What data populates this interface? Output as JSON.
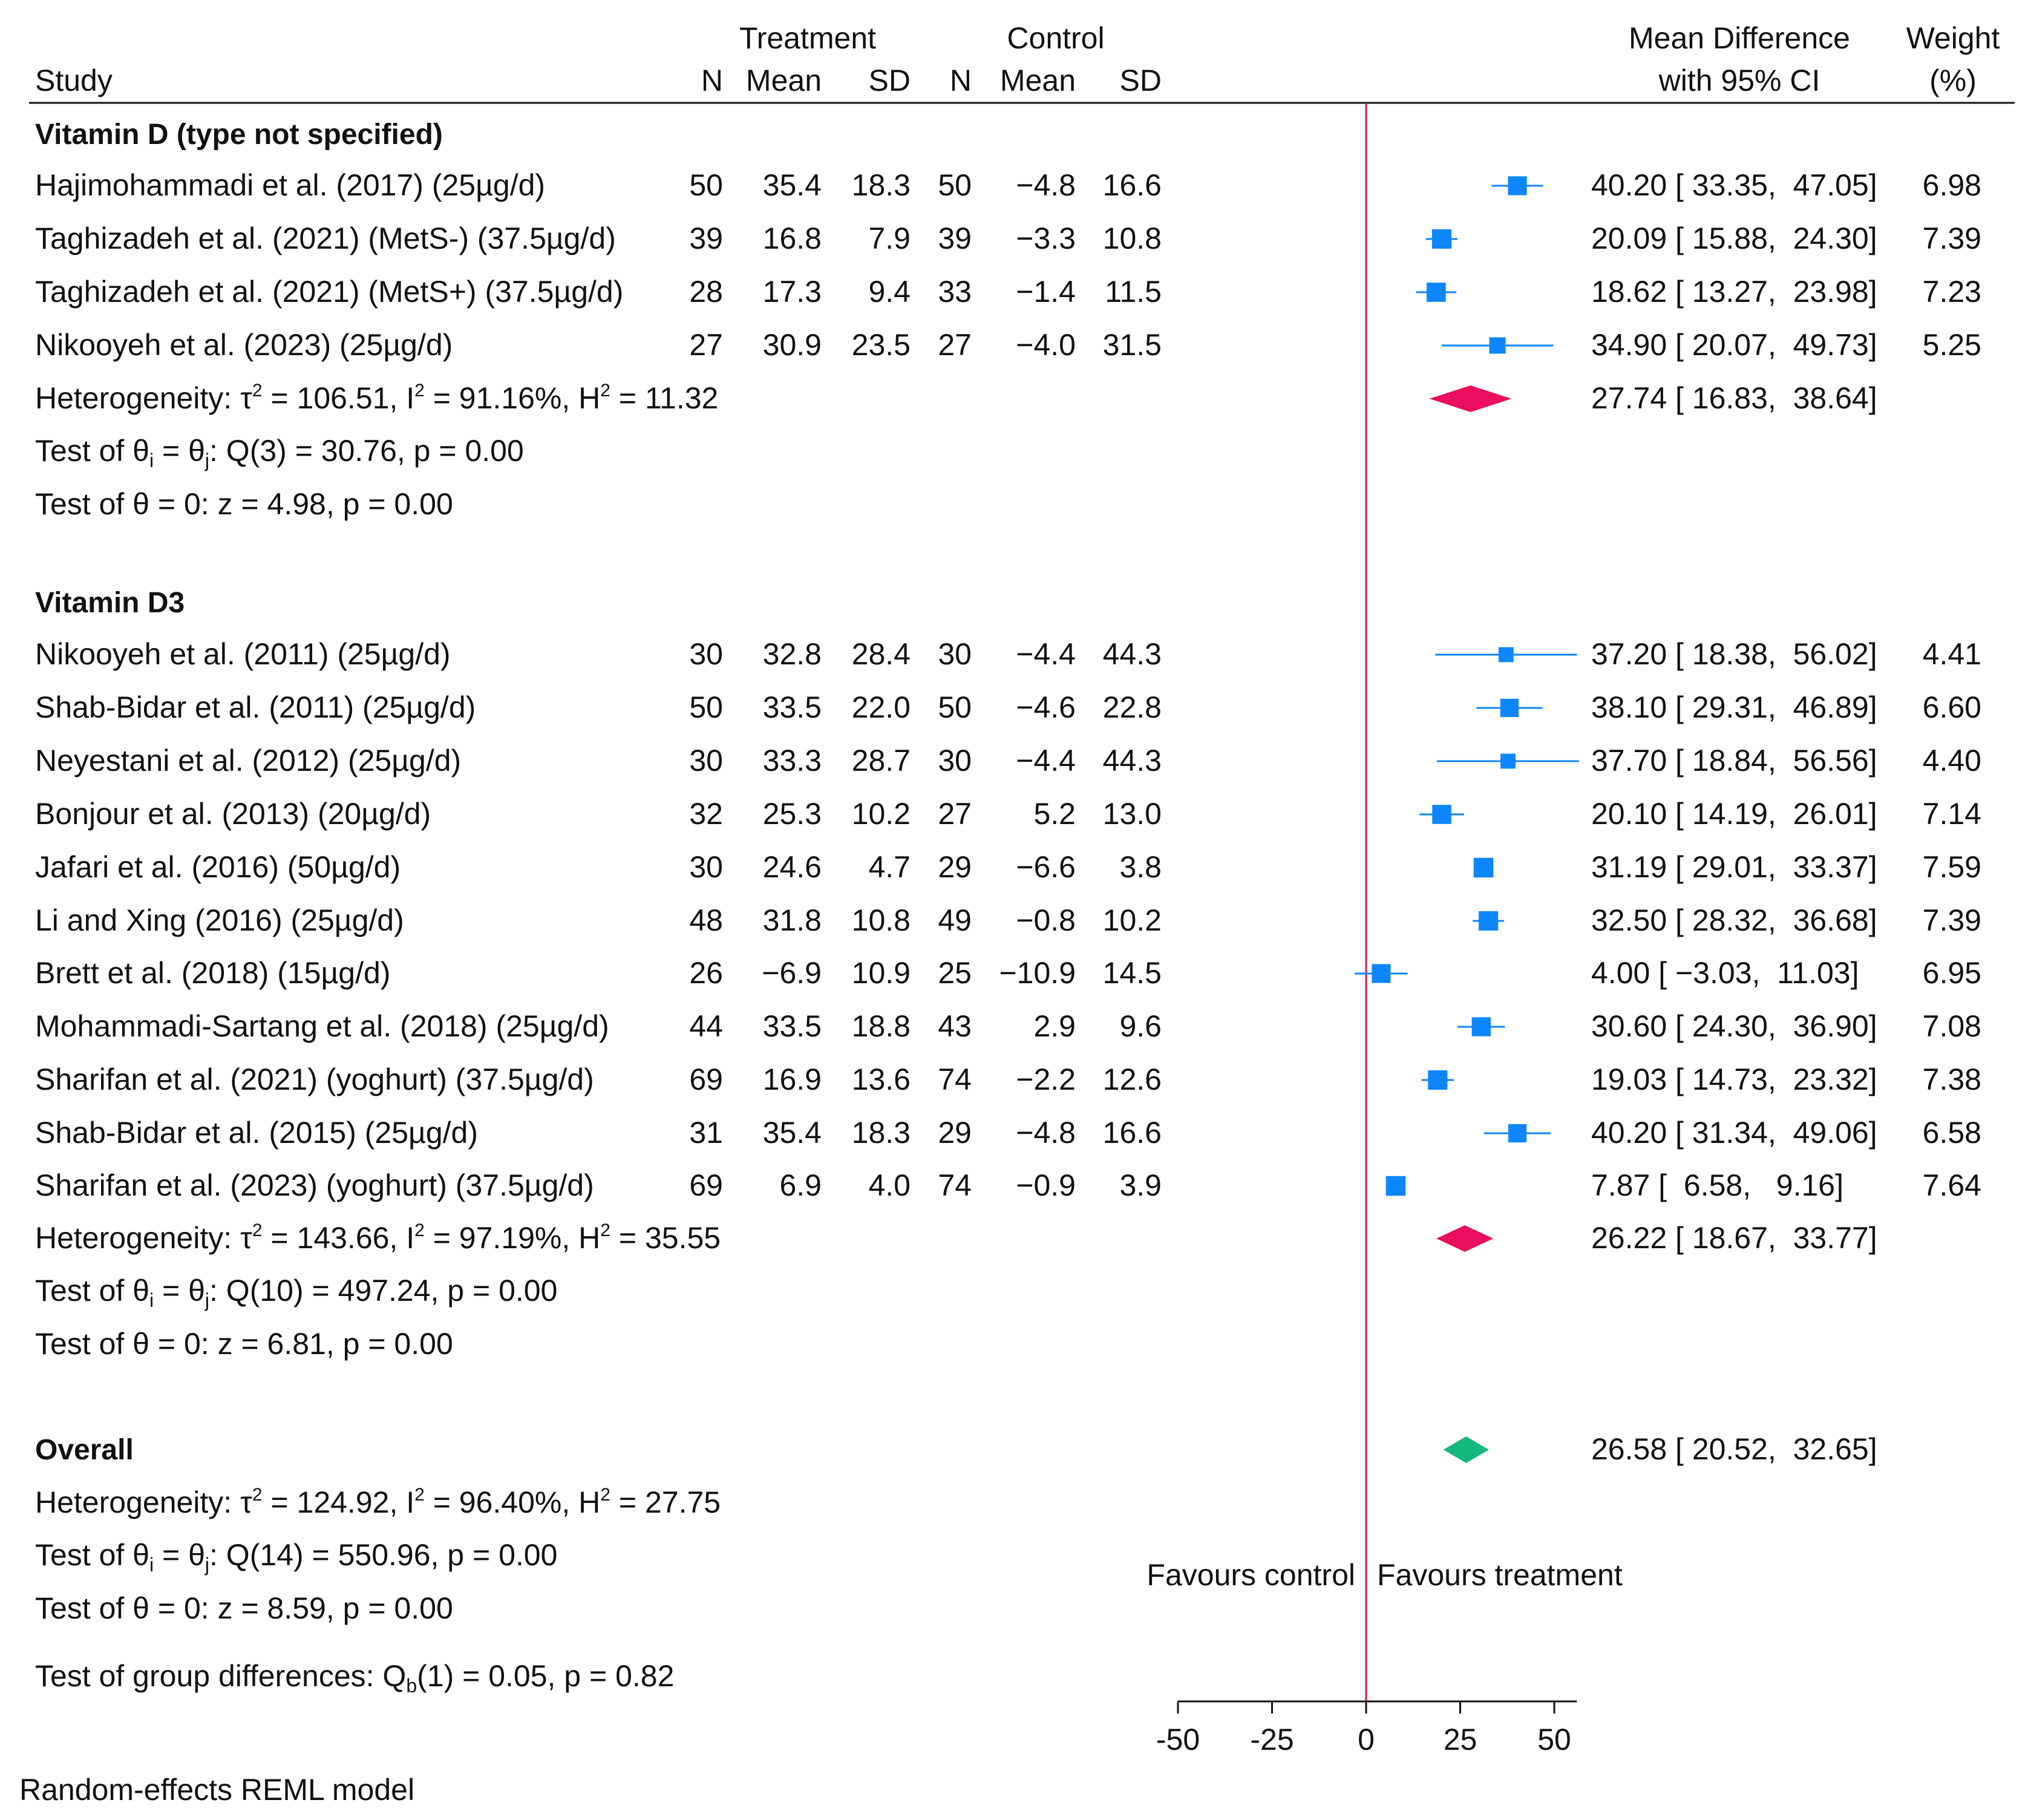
{
  "chart_data": {
    "type": "forest",
    "header": {
      "study": "Study",
      "treatment": "Treatment",
      "control": "Control",
      "n": "N",
      "mean": "Mean",
      "sd": "SD",
      "md_line1": "Mean Difference",
      "md_line2": "with 95% CI",
      "weight_line1": "Weight",
      "weight_line2": "(%)"
    },
    "groups": [
      {
        "label": "Vitamin D (type not specified)",
        "studies": [
          {
            "study": "Hajimohammadi et al. (2017) (25µg/d)",
            "t_n": "50",
            "t_mean": "35.4",
            "t_sd": "18.3",
            "c_n": "50",
            "c_mean": "−4.8",
            "c_sd": "16.6",
            "md": 40.2,
            "lo": 33.35,
            "hi": 47.05,
            "ci_text": "40.20 [ 33.35,  47.05]",
            "weight": 6.98,
            "weight_text": "6.98"
          },
          {
            "study": "Taghizadeh et al. (2021) (MetS-) (37.5µg/d)",
            "t_n": "39",
            "t_mean": "16.8",
            "t_sd": "7.9",
            "c_n": "39",
            "c_mean": "−3.3",
            "c_sd": "10.8",
            "md": 20.09,
            "lo": 15.88,
            "hi": 24.3,
            "ci_text": "20.09 [ 15.88,  24.30]",
            "weight": 7.39,
            "weight_text": "7.39"
          },
          {
            "study": "Taghizadeh et al. (2021) (MetS+) (37.5µg/d)",
            "t_n": "28",
            "t_mean": "17.3",
            "t_sd": "9.4",
            "c_n": "33",
            "c_mean": "−1.4",
            "c_sd": "11.5",
            "md": 18.62,
            "lo": 13.27,
            "hi": 23.98,
            "ci_text": "18.62 [ 13.27,  23.98]",
            "weight": 7.23,
            "weight_text": "7.23"
          },
          {
            "study": "Nikooyeh et al. (2023) (25µg/d)",
            "t_n": "27",
            "t_mean": "30.9",
            "t_sd": "23.5",
            "c_n": "27",
            "c_mean": "−4.0",
            "c_sd": "31.5",
            "md": 34.9,
            "lo": 20.07,
            "hi": 49.73,
            "ci_text": "34.90 [ 20.07,  49.73]",
            "weight": 5.25,
            "weight_text": "5.25"
          }
        ],
        "summary": {
          "md": 27.74,
          "lo": 16.83,
          "hi": 38.64,
          "ci_text": "27.74 [ 16.83,  38.64]"
        },
        "heterogeneity": {
          "prefix": "Heterogeneity: τ",
          "tau_part": " = 106.51, I",
          "i_part": " = 91.16%, H",
          "h_part": " = 11.32"
        },
        "test_q": {
          "prefix": "Test of θ",
          "mid": " = θ",
          "suffix": ": Q(3) = 30.76, p = 0.00"
        },
        "test_z": "Test of θ = 0: z = 4.98, p = 0.00"
      },
      {
        "label": "Vitamin D3",
        "studies": [
          {
            "study": "Nikooyeh et al. (2011) (25µg/d)",
            "t_n": "30",
            "t_mean": "32.8",
            "t_sd": "28.4",
            "c_n": "30",
            "c_mean": "−4.4",
            "c_sd": "44.3",
            "md": 37.2,
            "lo": 18.38,
            "hi": 56.02,
            "ci_text": "37.20 [ 18.38,  56.02]",
            "weight": 4.41,
            "weight_text": "4.41"
          },
          {
            "study": "Shab-Bidar et al. (2011) (25µg/d)",
            "t_n": "50",
            "t_mean": "33.5",
            "t_sd": "22.0",
            "c_n": "50",
            "c_mean": "−4.6",
            "c_sd": "22.8",
            "md": 38.1,
            "lo": 29.31,
            "hi": 46.89,
            "ci_text": "38.10 [ 29.31,  46.89]",
            "weight": 6.6,
            "weight_text": "6.60"
          },
          {
            "study": "Neyestani et al. (2012) (25µg/d)",
            "t_n": "30",
            "t_mean": "33.3",
            "t_sd": "28.7",
            "c_n": "30",
            "c_mean": "−4.4",
            "c_sd": "44.3",
            "md": 37.7,
            "lo": 18.84,
            "hi": 56.56,
            "ci_text": "37.70 [ 18.84,  56.56]",
            "weight": 4.4,
            "weight_text": "4.40"
          },
          {
            "study": "Bonjour et al. (2013) (20µg/d)",
            "t_n": "32",
            "t_mean": "25.3",
            "t_sd": "10.2",
            "c_n": "27",
            "c_mean": "5.2",
            "c_sd": "13.0",
            "md": 20.1,
            "lo": 14.19,
            "hi": 26.01,
            "ci_text": "20.10 [ 14.19,  26.01]",
            "weight": 7.14,
            "weight_text": "7.14"
          },
          {
            "study": "Jafari et al. (2016) (50µg/d)",
            "t_n": "30",
            "t_mean": "24.6",
            "t_sd": "4.7",
            "c_n": "29",
            "c_mean": "−6.6",
            "c_sd": "3.8",
            "md": 31.19,
            "lo": 29.01,
            "hi": 33.37,
            "ci_text": "31.19 [ 29.01,  33.37]",
            "weight": 7.59,
            "weight_text": "7.59"
          },
          {
            "study": "Li and Xing (2016) (25µg/d)",
            "t_n": "48",
            "t_mean": "31.8",
            "t_sd": "10.8",
            "c_n": "49",
            "c_mean": "−0.8",
            "c_sd": "10.2",
            "md": 32.5,
            "lo": 28.32,
            "hi": 36.68,
            "ci_text": "32.50 [ 28.32,  36.68]",
            "weight": 7.39,
            "weight_text": "7.39"
          },
          {
            "study": "Brett et al. (2018) (15µg/d)",
            "t_n": "26",
            "t_mean": "−6.9",
            "t_sd": "10.9",
            "c_n": "25",
            "c_mean": "−10.9",
            "c_sd": "14.5",
            "md": 4.0,
            "lo": -3.03,
            "hi": 11.03,
            "ci_text": "4.00 [ −3.03,  11.03]",
            "weight": 6.95,
            "weight_text": "6.95"
          },
          {
            "study": "Mohammadi-Sartang et al. (2018) (25µg/d)",
            "t_n": "44",
            "t_mean": "33.5",
            "t_sd": "18.8",
            "c_n": "43",
            "c_mean": "2.9",
            "c_sd": "9.6",
            "md": 30.6,
            "lo": 24.3,
            "hi": 36.9,
            "ci_text": "30.60 [ 24.30,  36.90]",
            "weight": 7.08,
            "weight_text": "7.08"
          },
          {
            "study": "Sharifan et al. (2021) (yoghurt) (37.5µg/d)",
            "t_n": "69",
            "t_mean": "16.9",
            "t_sd": "13.6",
            "c_n": "74",
            "c_mean": "−2.2",
            "c_sd": "12.6",
            "md": 19.03,
            "lo": 14.73,
            "hi": 23.32,
            "ci_text": "19.03 [ 14.73,  23.32]",
            "weight": 7.38,
            "weight_text": "7.38"
          },
          {
            "study": "Shab-Bidar et al. (2015) (25µg/d)",
            "t_n": "31",
            "t_mean": "35.4",
            "t_sd": "18.3",
            "c_n": "29",
            "c_mean": "−4.8",
            "c_sd": "16.6",
            "md": 40.2,
            "lo": 31.34,
            "hi": 49.06,
            "ci_text": "40.20 [ 31.34,  49.06]",
            "weight": 6.58,
            "weight_text": "6.58"
          },
          {
            "study": "Sharifan et al. (2023) (yoghurt) (37.5µg/d)",
            "t_n": "69",
            "t_mean": "6.9",
            "t_sd": "4.0",
            "c_n": "74",
            "c_mean": "−0.9",
            "c_sd": "3.9",
            "md": 7.87,
            "lo": 6.58,
            "hi": 9.16,
            "ci_text": "7.87 [  6.58,   9.16]",
            "weight": 7.64,
            "weight_text": "7.64"
          }
        ],
        "summary": {
          "md": 26.22,
          "lo": 18.67,
          "hi": 33.77,
          "ci_text": "26.22 [ 18.67,  33.77]"
        },
        "heterogeneity": {
          "prefix": "Heterogeneity: τ",
          "tau_part": " = 143.66, I",
          "i_part": " = 97.19%, H",
          "h_part": " = 35.55"
        },
        "test_q": {
          "prefix": "Test of θ",
          "mid": " = θ",
          "suffix": ": Q(10) = 497.24, p = 0.00"
        },
        "test_z": "Test of θ = 0: z = 6.81, p = 0.00"
      }
    ],
    "overall": {
      "label": "Overall",
      "md": 26.58,
      "lo": 20.52,
      "hi": 32.65,
      "ci_text": "26.58 [ 20.52,  32.65]",
      "heterogeneity": {
        "prefix": "Heterogeneity: τ",
        "tau_part": " = 124.92, I",
        "i_part": " = 96.40%, H",
        "h_part": " = 27.75"
      },
      "test_q": {
        "prefix": "Test of θ",
        "mid": " = θ",
        "suffix": ": Q(14) = 550.96, p = 0.00"
      },
      "test_z": "Test of θ = 0: z = 8.59, p = 0.00"
    },
    "group_test": {
      "prefix": "Test of group differences: Q",
      "sub": "b",
      "suffix": "(1) = 0.05, p = 0.82"
    },
    "x_axis": {
      "min": -50,
      "max": 56,
      "ticks": [
        -50,
        -25,
        0,
        25,
        50
      ],
      "tick_labels": [
        "-50",
        "-25",
        "0",
        "25",
        "50"
      ]
    },
    "favours_left": "Favours control",
    "favours_right": "Favours treatment",
    "footnote": "Random-effects REML model",
    "colors": {
      "study_marker": "#0d86ff",
      "subgroup_diamond": "#ea0e5c",
      "overall_diamond": "#13b87c",
      "null_line": "#d21a4c",
      "text": "#111111"
    }
  }
}
